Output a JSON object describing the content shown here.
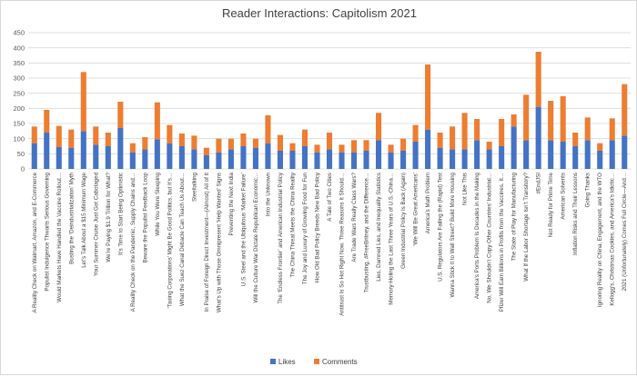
{
  "chart_data": {
    "type": "bar",
    "stacked": true,
    "title": "Reader Interactions: Capitolism 2021",
    "xlabel": "",
    "ylabel": "",
    "ylim": [
      0,
      450
    ],
    "yticks": [
      0,
      50,
      100,
      150,
      200,
      250,
      300,
      350,
      400,
      450
    ],
    "grid": true,
    "legend_position": "bottom",
    "colors": {
      "Likes": "#4472c4",
      "Comments": "#ed7d31",
      "grid": "#d9d9d9"
    },
    "categories": [
      "A Reality Check on Walmart, Amazon, and E-Commerce",
      "Populist Indulgence Thwarts Serious Governing",
      "Would Markets Have Handled the Vaccine Rollout…",
      "Busting the ‘Deindustrialization’ Myth",
      "Let’s Talk About a $15 Minimum Wage",
      "Your Summer Cruise Just Got Cabotaged",
      "We’re Paying $1.9 Trillion for What?",
      "It’s Time to Start Being Optimistic",
      "A Reality Check on the Pandemic, Supply Chains and…",
      "Beware the Populist Feedback Loop",
      "While You Were Sleeping",
      "‘Taxing Corporations’ Might Be Good Politics, but It’s…",
      "What the Suez Canal Debacle Can Teach Us About…",
      "Steeltalking",
      "In Praise of Foreign Direct Investment—(Almost) All of It",
      "What’s Up with Those Omnipresent ‘Help Wanted’ Signs",
      "Preventing the Next India",
      "U.S. Steel and the Ubiquitous ‘Market Failure’",
      "Will the Culture War Dictate Republican Economic…",
      "Into the Unknown",
      "The ‘Endless Frontier’ and American Industrial Policy",
      "The China Threat Meets the China Reality",
      "The Joy and Luxury of Growing Food for Fun",
      "How Old Bad Policy Breeds New Bad Policy",
      "A Tale of Two Cities",
      "Antitrust Is So Hot Right Now. Three Reasons It Should…",
      "Are Trade Wars Really Class Wars?",
      "Trustbusting, #FreeBritney, and the Difference…",
      "Lies, Damned Lies, and Inequality Statistics",
      "Memory-Holing the Last Three Years of U.S.-China…",
      "Green Industrial Policy Is Back (Again)",
      "‘We Will Be Great Americans’",
      "America’s Math Problem",
      "U.S. Regulators Are Failing the (Rapid) Test",
      "Wanna Stick It to Wall Street? Build More Housing",
      "Not Like This",
      "America’s Ports Problem Is Decades in the Making",
      "No, We Shouldn’t Copy Other Countries’ Industrial…",
      "Pfizer Will Earn Billions in Profits from the Vaccines. It…",
      "The State of Play for Manufacturing",
      "What If the Labor Shortage Isn’t Transitory?",
      "#EndJSI",
      "Not Ready for Prime Time",
      "American Solvents",
      "Inflation Risks and Their Lessons",
      "Going Thanks",
      "Ignoring Reality on China, Engagement, and the WTO",
      "Kellogg’s, Christmas Cookies, and America’s Idiotic…",
      "2021 (Unfortunately) Comes Full Circle—And…"
    ],
    "series": [
      {
        "name": "Likes",
        "values": [
          85,
          120,
          72,
          70,
          125,
          80,
          75,
          135,
          55,
          65,
          98,
          85,
          75,
          65,
          45,
          55,
          65,
          75,
          70,
          85,
          60,
          60,
          75,
          55,
          65,
          55,
          55,
          60,
          95,
          55,
          60,
          90,
          130,
          70,
          65,
          65,
          95,
          65,
          75,
          140,
          95,
          205,
          95,
          90,
          75,
          95,
          60,
          95,
          110
        ]
      },
      {
        "name": "Comments",
        "values": [
          55,
          75,
          70,
          60,
          195,
          60,
          45,
          87,
          30,
          40,
          122,
          60,
          42,
          45,
          25,
          45,
          35,
          42,
          30,
          92,
          52,
          25,
          55,
          25,
          55,
          25,
          40,
          35,
          90,
          25,
          40,
          55,
          215,
          50,
          75,
          120,
          70,
          25,
          90,
          40,
          150,
          182,
          130,
          150,
          45,
          75,
          25,
          72,
          170
        ]
      }
    ]
  }
}
